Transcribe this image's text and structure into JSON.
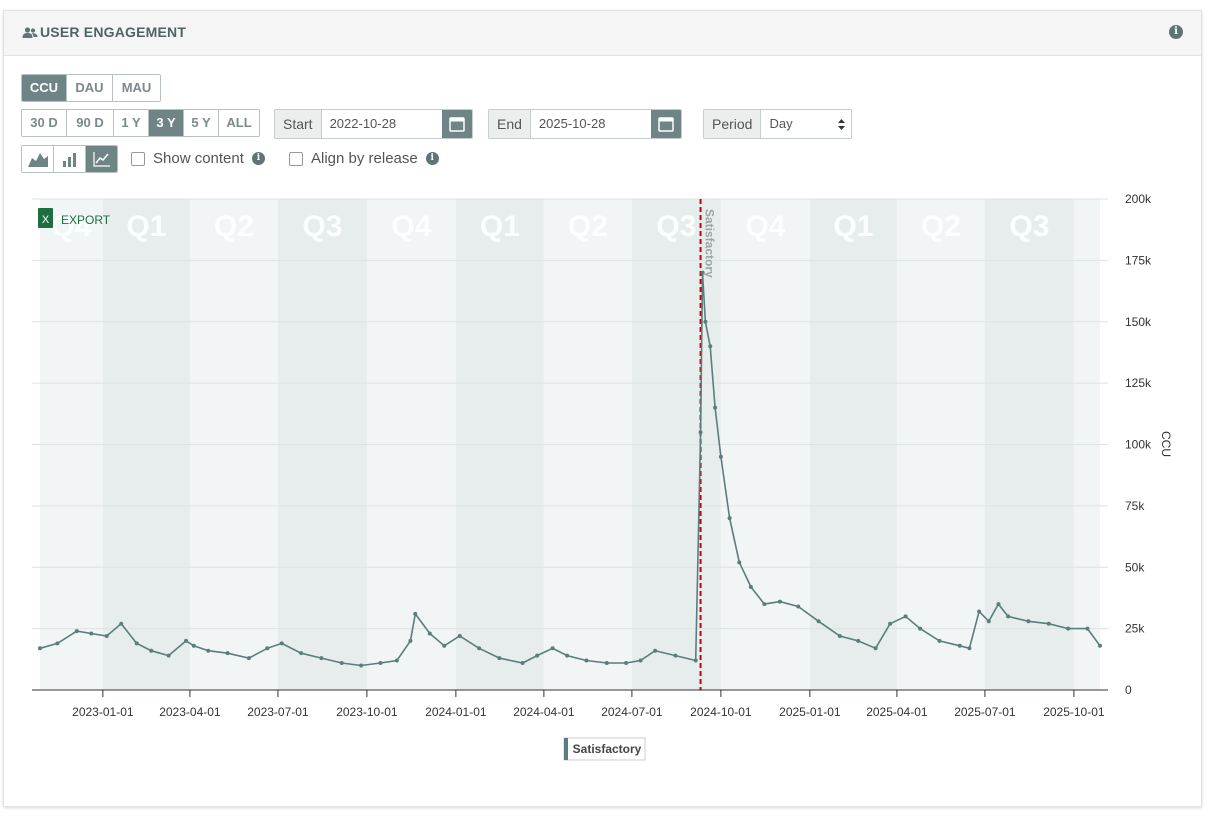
{
  "header": {
    "title": "USER ENGAGEMENT",
    "icon": "users-icon",
    "info_icon": "info-icon"
  },
  "metric_tabs": [
    {
      "label": "CCU",
      "active": true
    },
    {
      "label": "DAU",
      "active": false
    },
    {
      "label": "MAU",
      "active": false
    }
  ],
  "range_tabs": [
    {
      "label": "30 D",
      "active": false
    },
    {
      "label": "90 D",
      "active": false
    },
    {
      "label": "1 Y",
      "active": false
    },
    {
      "label": "3 Y",
      "active": true
    },
    {
      "label": "5 Y",
      "active": false
    },
    {
      "label": "ALL",
      "active": false
    }
  ],
  "start": {
    "label": "Start",
    "value": "2022-10-28"
  },
  "end": {
    "label": "End",
    "value": "2025-10-28"
  },
  "period": {
    "label": "Period",
    "value": "Day"
  },
  "options": {
    "show_content": "Show content",
    "align_by_release": "Align by release"
  },
  "export_label": "EXPORT",
  "colors": {
    "line": "#5b7d7d",
    "release": "#cc0000",
    "accent": "#6f8585"
  },
  "chart_data": {
    "type": "line",
    "xlabel": "",
    "ylabel": "CCU",
    "ylim": [
      0,
      200000
    ],
    "y_ticks": [
      "0",
      "25k",
      "50k",
      "75k",
      "100k",
      "125k",
      "150k",
      "175k",
      "200k"
    ],
    "x_ticks": [
      "2023-01-01",
      "2023-04-01",
      "2023-07-01",
      "2023-10-01",
      "2024-01-01",
      "2024-04-01",
      "2024-07-01",
      "2024-10-01",
      "2025-01-01",
      "2025-04-01",
      "2025-07-01",
      "2025-10-01"
    ],
    "x_range": [
      "2022-10-28",
      "2025-10-28"
    ],
    "quarter_labels": [
      "Q4",
      "Q1",
      "Q2",
      "Q3",
      "Q4",
      "Q1",
      "Q2",
      "Q3",
      "Q4",
      "Q1",
      "Q2",
      "Q3"
    ],
    "release_marker": {
      "date": "2024-09-10",
      "label": "Satisfactory"
    },
    "grid": true,
    "legend_position": "bottom-center",
    "series": [
      {
        "name": "Satisfactory",
        "x": [
          "2022-10-28",
          "2022-11-15",
          "2022-12-05",
          "2022-12-20",
          "2023-01-05",
          "2023-01-20",
          "2023-02-05",
          "2023-02-20",
          "2023-03-10",
          "2023-03-28",
          "2023-04-05",
          "2023-04-20",
          "2023-05-10",
          "2023-06-01",
          "2023-06-20",
          "2023-07-05",
          "2023-07-25",
          "2023-08-15",
          "2023-09-05",
          "2023-09-25",
          "2023-10-15",
          "2023-11-01",
          "2023-11-15",
          "2023-11-20",
          "2023-12-05",
          "2023-12-20",
          "2024-01-05",
          "2024-01-25",
          "2024-02-15",
          "2024-03-10",
          "2024-03-25",
          "2024-04-10",
          "2024-04-25",
          "2024-05-15",
          "2024-06-05",
          "2024-06-25",
          "2024-07-10",
          "2024-07-25",
          "2024-08-15",
          "2024-09-05",
          "2024-09-10",
          "2024-09-12",
          "2024-09-15",
          "2024-09-20",
          "2024-09-25",
          "2024-10-01",
          "2024-10-10",
          "2024-10-20",
          "2024-11-01",
          "2024-11-15",
          "2024-12-01",
          "2024-12-20",
          "2025-01-10",
          "2025-02-01",
          "2025-02-20",
          "2025-03-10",
          "2025-03-25",
          "2025-04-10",
          "2025-04-25",
          "2025-05-15",
          "2025-06-05",
          "2025-06-15",
          "2025-06-25",
          "2025-07-05",
          "2025-07-15",
          "2025-07-25",
          "2025-08-15",
          "2025-09-05",
          "2025-09-25",
          "2025-10-15",
          "2025-10-28"
        ],
        "values": [
          17000,
          19000,
          24000,
          23000,
          22000,
          27000,
          19000,
          16000,
          14000,
          20000,
          18000,
          16000,
          15000,
          13000,
          17000,
          19000,
          15000,
          13000,
          11000,
          10000,
          11000,
          12000,
          20000,
          31000,
          23000,
          18000,
          22000,
          17000,
          13000,
          11000,
          14000,
          17000,
          14000,
          12000,
          11000,
          11000,
          12000,
          16000,
          14000,
          12000,
          105000,
          170000,
          150000,
          140000,
          115000,
          95000,
          70000,
          52000,
          42000,
          35000,
          36000,
          34000,
          28000,
          22000,
          20000,
          17000,
          27000,
          30000,
          25000,
          20000,
          18000,
          17000,
          32000,
          28000,
          35000,
          30000,
          28000,
          27000,
          25000,
          25000,
          18000
        ]
      }
    ]
  }
}
